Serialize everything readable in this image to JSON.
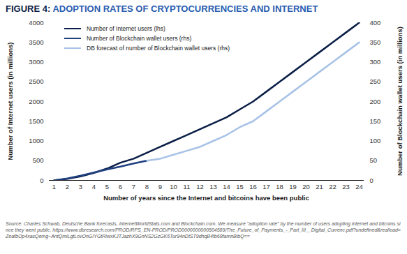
{
  "chart_data": {
    "type": "line",
    "title": "FIGURE 4: ADOPTION RATES OF CRYPTOCURRENCIES AND INTERNET",
    "xlabel": "Number of years since the Internet and bitcoins have been public",
    "ylabel": "Number of Internet users (in millions)",
    "y2label": "Number of Blockchain wallet users (in millions)",
    "source": "Source: Charles Schwab, Deutsche Bank forecasts, InternetWorldStats.com and Blockchain.com. We measure \"adoption rate\" by the number of users adopting internet and bitcoins since they went public. https://www.dbresearch.com/PROD/RPS_EN-PROD/PROD0000000000504589/The_Future_of_Payments_-_Part_III__Digital_Currenc.pdf?undefined&realload=ZeafbOp4xasQemg~AntQmiLgtLovOnGIYGtRiwxKJTJazhX9GnNS2GzGK6Tur94nDtST9dhqB4fb68famnBibQ==",
    "x": [
      1,
      2,
      3,
      4,
      5,
      6,
      7,
      8,
      9,
      10,
      11,
      12,
      13,
      14,
      15,
      16,
      17,
      18,
      19,
      20,
      21,
      22,
      23,
      24
    ],
    "xlim": [
      1,
      24
    ],
    "xticks": [
      1,
      2,
      3,
      4,
      5,
      6,
      7,
      8,
      9,
      10,
      11,
      12,
      13,
      14,
      15,
      16,
      17,
      18,
      19,
      20,
      21,
      22,
      23,
      24
    ],
    "ylim": [
      0,
      4000
    ],
    "yticks": [
      0,
      500,
      1000,
      1500,
      2000,
      2500,
      3000,
      3500,
      4000
    ],
    "y2lim": [
      0,
      400
    ],
    "y2ticks": [
      0,
      50,
      100,
      150,
      200,
      250,
      300,
      350,
      400
    ],
    "grid": false,
    "legend": "top-left",
    "series": [
      {
        "name": "Number of Internet users (lhs)",
        "color": "#0a1e46",
        "values": [
          0,
          40,
          100,
          190,
          300,
          450,
          550,
          700,
          850,
          1000,
          1150,
          1300,
          1450,
          1600,
          1800,
          2000,
          2250,
          2500,
          2750,
          3000,
          3250,
          3500,
          3750,
          4000
        ]
      },
      {
        "name": "Number of Blockchain wallet users (rhs)",
        "color": "#1f3f80",
        "axis": "y2",
        "values": [
          0,
          5,
          12,
          20,
          28,
          35,
          43,
          50,
          null,
          null,
          null,
          null,
          null,
          null,
          null,
          null,
          null,
          null,
          null,
          null,
          null,
          null,
          null,
          null
        ]
      },
      {
        "name": "DB forecast of number of Blockchain wallet users (rhs)",
        "color": "#a7c2e6",
        "axis": "y2",
        "values": [
          null,
          null,
          null,
          null,
          null,
          null,
          null,
          50,
          55,
          65,
          75,
          85,
          100,
          115,
          135,
          150,
          175,
          200,
          225,
          250,
          275,
          300,
          325,
          350
        ]
      }
    ]
  }
}
